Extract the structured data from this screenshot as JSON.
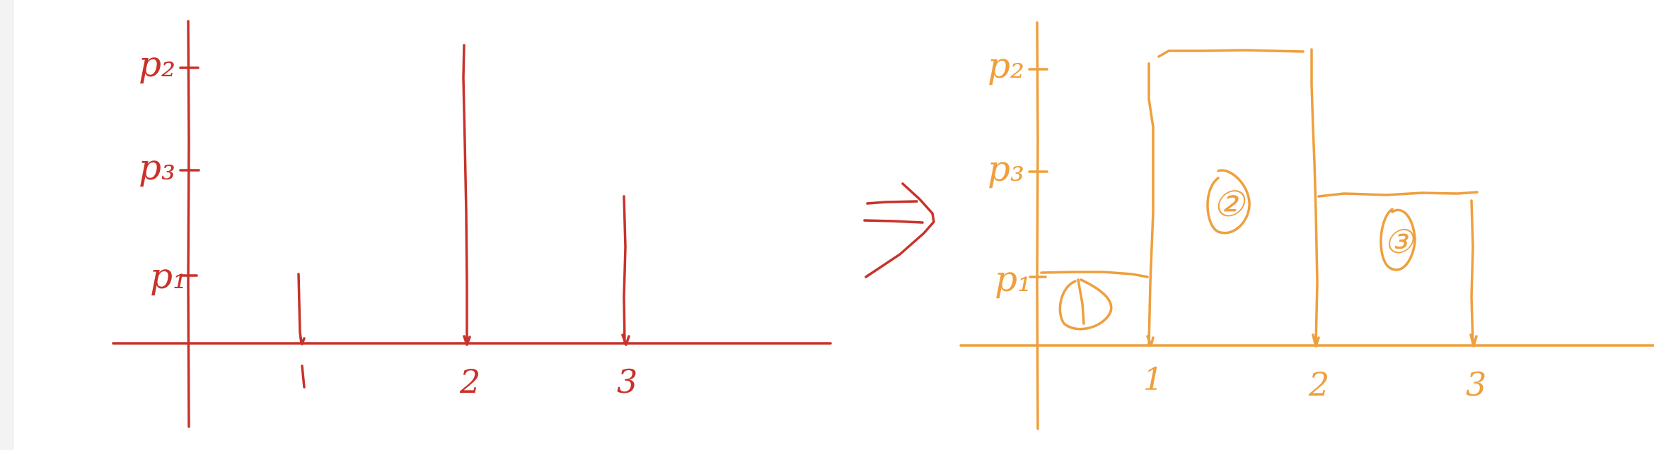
{
  "colors": {
    "left": "#c8322a",
    "right": "#ef9f3c",
    "background": "#ffffff",
    "gutter": "#f3f3f3"
  },
  "left_diagram": {
    "type": "stem",
    "y_tick_labels": [
      "p₂",
      "p₃",
      "p₁"
    ],
    "x_tick_labels": [
      "1",
      "2",
      "3"
    ],
    "stems": [
      {
        "x": 1,
        "level": "p₁"
      },
      {
        "x": 2,
        "level": "p₂"
      },
      {
        "x": 3,
        "level": "p₃"
      }
    ]
  },
  "arrow": {
    "glyph": "⇒"
  },
  "right_diagram": {
    "type": "step",
    "y_tick_labels": [
      "p₂",
      "p₃",
      "p₁"
    ],
    "x_tick_labels": [
      "1",
      "2",
      "3"
    ],
    "regions": [
      {
        "label": "①",
        "from": 0,
        "to": 1,
        "level": "p₁"
      },
      {
        "label": "②",
        "from": 1,
        "to": 2,
        "level": "p₂"
      },
      {
        "label": "③",
        "from": 2,
        "to": 3,
        "level": "p₃"
      }
    ]
  }
}
